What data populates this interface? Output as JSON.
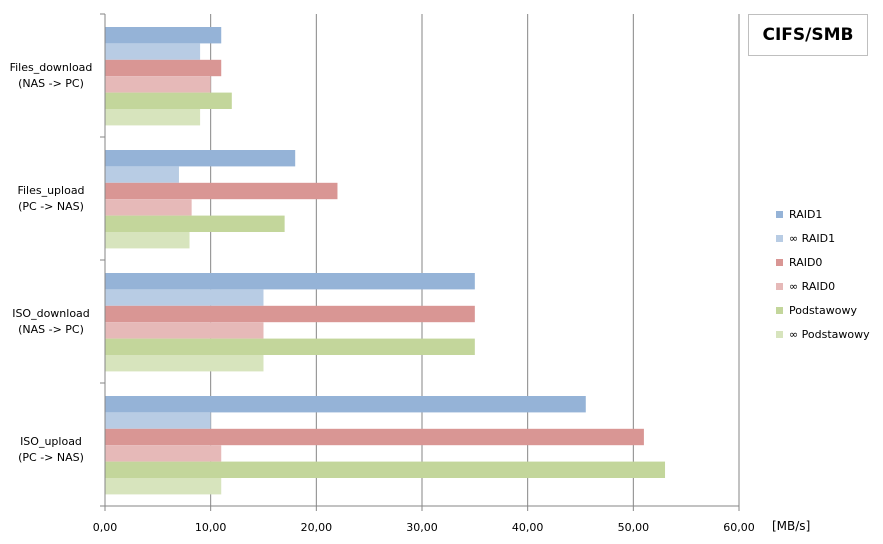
{
  "chart_data": {
    "type": "bar",
    "orientation": "horizontal",
    "title": "CIFS/SMB",
    "xlabel": "[MB/s]",
    "ylabel": "",
    "xlim": [
      0,
      60
    ],
    "xticks": [
      "0,00",
      "10,00",
      "20,00",
      "30,00",
      "40,00",
      "50,00",
      "60,00"
    ],
    "grid": true,
    "legend_position": "right",
    "categories": [
      {
        "line1": "Files_download",
        "line2": "(NAS -> PC)"
      },
      {
        "line1": "Files_upload",
        "line2": "(PC -> NAS)"
      },
      {
        "line1": "ISO_download",
        "line2": "(NAS -> PC)"
      },
      {
        "line1": "ISO_upload",
        "line2": "(PC -> NAS)"
      }
    ],
    "series": [
      {
        "name": "RAID1",
        "color": "#95b3d7",
        "values": [
          11,
          18,
          35,
          45.5
        ]
      },
      {
        "name": "∞ RAID1",
        "color": "#b8cce4",
        "values": [
          9,
          7,
          15,
          10
        ]
      },
      {
        "name": "RAID0",
        "color": "#d99694",
        "values": [
          11,
          22,
          35,
          51
        ]
      },
      {
        "name": "∞ RAID0",
        "color": "#e6b9b8",
        "values": [
          10,
          8.2,
          15,
          11
        ]
      },
      {
        "name": "Podstawowy",
        "color": "#c3d69b",
        "values": [
          12,
          17,
          35,
          53
        ]
      },
      {
        "name": "∞ Podstawowy",
        "color": "#d7e4bd",
        "values": [
          9,
          8,
          15,
          11
        ]
      }
    ]
  }
}
